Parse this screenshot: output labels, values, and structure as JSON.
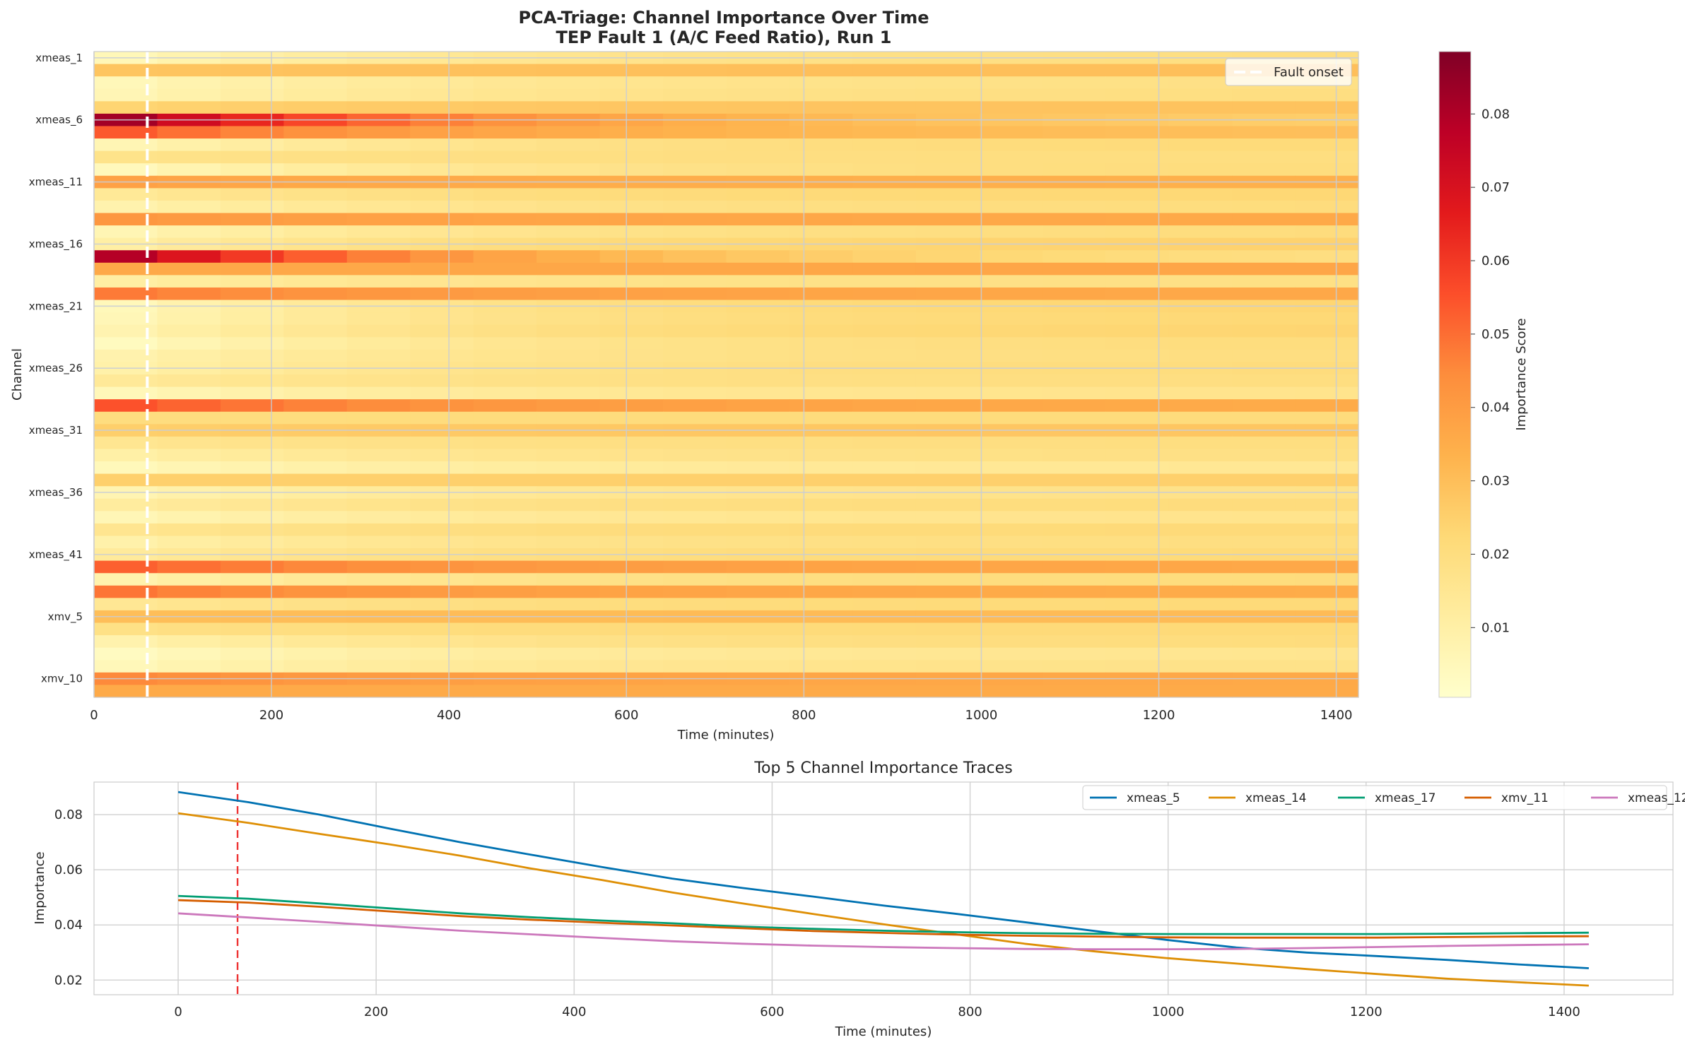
{
  "chart_data": [
    {
      "type": "heatmap",
      "title_line1": "PCA-Triage: Channel Importance Over Time",
      "title_line2": "TEP Fault 1 (A/C Feed Ratio), Run 1",
      "xlabel": "Time (minutes)",
      "ylabel": "Channel",
      "xlim": [
        0,
        1425
      ],
      "xticks": [
        "0",
        "200",
        "400",
        "600",
        "800",
        "1000",
        "1200",
        "1400"
      ],
      "xtick_values": [
        0,
        200,
        400,
        600,
        800,
        1000,
        1200,
        1400
      ],
      "ytick_labels": [
        "xmeas_1",
        "xmeas_6",
        "xmeas_11",
        "xmeas_16",
        "xmeas_21",
        "xmeas_26",
        "xmeas_31",
        "xmeas_36",
        "xmeas_41",
        "xmv_5",
        "xmv_10"
      ],
      "ytick_rows": [
        0,
        5,
        10,
        15,
        20,
        25,
        30,
        35,
        40,
        45,
        50
      ],
      "n_channels": 52,
      "n_time_bins": 20,
      "time_bin_minutes": 71.25,
      "fault_onset": 60,
      "legend": [
        "Fault onset"
      ],
      "legend_position": "upper-right",
      "colorbar": {
        "label": "Importance Score",
        "ticks": [
          "0.01",
          "0.02",
          "0.03",
          "0.04",
          "0.05",
          "0.06",
          "0.07",
          "0.08"
        ],
        "tick_values": [
          0.01,
          0.02,
          0.03,
          0.04,
          0.05,
          0.06,
          0.07,
          0.08
        ],
        "range": [
          0.0005,
          0.0885
        ],
        "colormap": "YlOrRd"
      },
      "channel_profiles": [
        [
          0.004,
          0.02
        ],
        [
          0.028,
          0.03
        ],
        [
          0.004,
          0.019
        ],
        [
          0.005,
          0.02
        ],
        [
          0.023,
          0.029
        ],
        [
          0.088,
          0.024
        ],
        [
          0.056,
          0.029
        ],
        [
          0.005,
          0.022
        ],
        [
          0.017,
          0.02
        ],
        [
          0.003,
          0.021
        ],
        [
          0.039,
          0.034
        ],
        [
          0.013,
          0.023
        ],
        [
          0.007,
          0.021
        ],
        [
          0.042,
          0.036
        ],
        [
          0.005,
          0.021
        ],
        [
          0.009,
          0.025
        ],
        [
          0.085,
          0.018
        ],
        [
          0.036,
          0.037
        ],
        [
          0.01,
          0.019
        ],
        [
          0.049,
          0.036
        ],
        [
          0.003,
          0.024
        ],
        [
          0.004,
          0.023
        ],
        [
          0.006,
          0.024
        ],
        [
          0.002,
          0.021
        ],
        [
          0.007,
          0.02
        ],
        [
          0.008,
          0.021
        ],
        [
          0.013,
          0.02
        ],
        [
          0.004,
          0.017
        ],
        [
          0.057,
          0.035
        ],
        [
          0.02,
          0.021
        ],
        [
          0.025,
          0.028
        ],
        [
          0.015,
          0.02
        ],
        [
          0.009,
          0.019
        ],
        [
          0.004,
          0.015
        ],
        [
          0.025,
          0.025
        ],
        [
          0.006,
          0.018
        ],
        [
          0.011,
          0.021
        ],
        [
          0.005,
          0.017
        ],
        [
          0.015,
          0.022
        ],
        [
          0.008,
          0.02
        ],
        [
          0.012,
          0.022
        ],
        [
          0.054,
          0.036
        ],
        [
          0.007,
          0.021
        ],
        [
          0.05,
          0.035
        ],
        [
          0.014,
          0.022
        ],
        [
          0.03,
          0.031
        ],
        [
          0.018,
          0.022
        ],
        [
          0.007,
          0.021
        ],
        [
          0.002,
          0.016
        ],
        [
          0.004,
          0.018
        ],
        [
          0.046,
          0.036
        ],
        [
          0.036,
          0.036
        ]
      ]
    },
    {
      "type": "line",
      "title": "Top 5 Channel Importance Traces",
      "xlabel": "Time (minutes)",
      "ylabel": "Importance",
      "xlim": [
        -85,
        1510
      ],
      "ylim": [
        0.0147,
        0.0918
      ],
      "xticks": [
        "0",
        "200",
        "400",
        "600",
        "800",
        "1000",
        "1200",
        "1400"
      ],
      "xtick_values": [
        0,
        200,
        400,
        600,
        800,
        1000,
        1200,
        1400
      ],
      "yticks": [
        "0.02",
        "0.04",
        "0.06",
        "0.08"
      ],
      "ytick_values": [
        0.02,
        0.04,
        0.06,
        0.08
      ],
      "fault_onset": 60,
      "legend_position": "upper-right",
      "x": [
        0,
        71,
        143,
        214,
        285,
        356,
        428,
        499,
        570,
        641,
        713,
        784,
        855,
        926,
        998,
        1069,
        1140,
        1211,
        1283,
        1354,
        1425
      ],
      "series": [
        {
          "name": "xmeas_5",
          "color": "#0072b2",
          "values": [
            0.0882,
            0.0845,
            0.08,
            0.0749,
            0.07,
            0.0655,
            0.061,
            0.0568,
            0.0534,
            0.0503,
            0.047,
            0.0441,
            0.041,
            0.0378,
            0.0346,
            0.0318,
            0.03,
            0.0287,
            0.0273,
            0.0257,
            0.0243
          ]
        },
        {
          "name": "xmeas_14",
          "color": "#de8f05",
          "values": [
            0.0805,
            0.077,
            0.073,
            0.0692,
            0.0651,
            0.0605,
            0.0563,
            0.0518,
            0.0478,
            0.044,
            0.0402,
            0.0367,
            0.0332,
            0.0304,
            0.028,
            0.026,
            0.024,
            0.0222,
            0.0205,
            0.0192,
            0.018
          ]
        },
        {
          "name": "xmeas_17",
          "color": "#029e73",
          "values": [
            0.0505,
            0.0495,
            0.0478,
            0.046,
            0.0442,
            0.0428,
            0.0416,
            0.0406,
            0.0394,
            0.0386,
            0.0379,
            0.0374,
            0.037,
            0.0368,
            0.0367,
            0.0367,
            0.0367,
            0.0367,
            0.0368,
            0.037,
            0.0372
          ]
        },
        {
          "name": "xmv_11",
          "color": "#d55e00",
          "values": [
            0.049,
            0.0481,
            0.0466,
            0.0449,
            0.0432,
            0.0419,
            0.0408,
            0.0398,
            0.0388,
            0.0378,
            0.0371,
            0.0365,
            0.0361,
            0.0358,
            0.0355,
            0.0354,
            0.0354,
            0.0354,
            0.0356,
            0.0358,
            0.0359
          ]
        },
        {
          "name": "xmeas_12",
          "color": "#cc78bc",
          "values": [
            0.0442,
            0.0427,
            0.0411,
            0.0395,
            0.0379,
            0.0366,
            0.0353,
            0.0341,
            0.0332,
            0.0325,
            0.032,
            0.0316,
            0.0313,
            0.0312,
            0.0312,
            0.0313,
            0.0316,
            0.032,
            0.0324,
            0.0327,
            0.033
          ]
        }
      ]
    }
  ]
}
